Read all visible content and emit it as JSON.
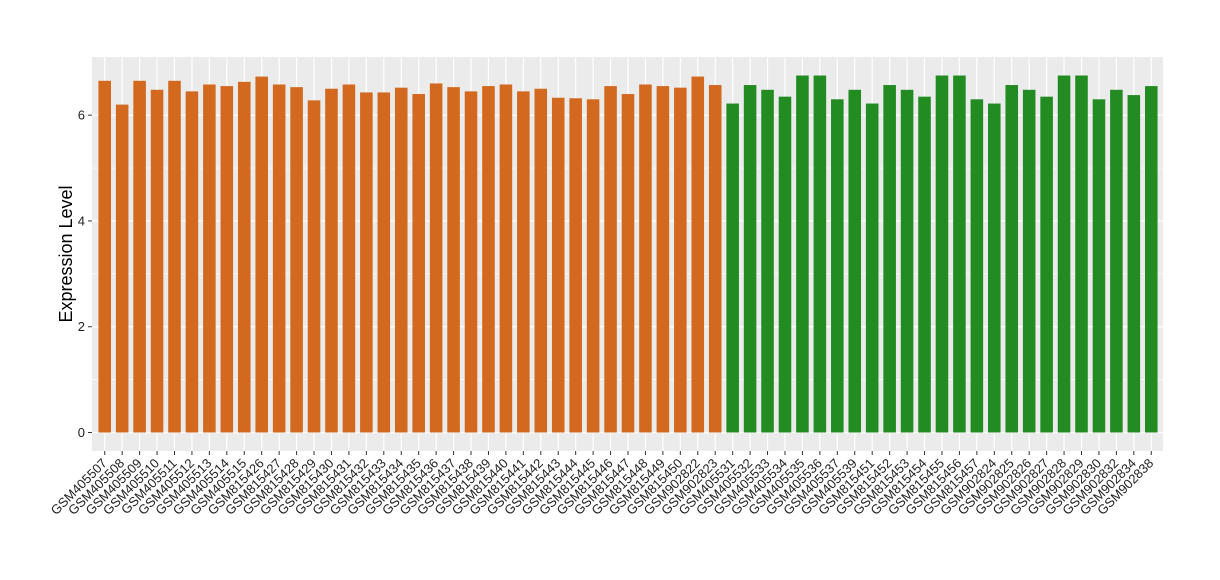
{
  "chart_data": {
    "type": "bar",
    "title": "",
    "xlabel": "",
    "ylabel": "Expression Level",
    "ylim": [
      -0.35,
      7.1
    ],
    "yticks": [
      0,
      2,
      4,
      6
    ],
    "grid": true,
    "legend": "none",
    "colors": {
      "group1": "#D2691E",
      "group2": "#228B22",
      "panel": "#EBEBEB",
      "grid": "#FFFFFF"
    },
    "categories": [
      "GSM405507",
      "GSM405508",
      "GSM405509",
      "GSM405510",
      "GSM405511",
      "GSM405512",
      "GSM405513",
      "GSM405514",
      "GSM405515",
      "GSM815426",
      "GSM815427",
      "GSM815428",
      "GSM815429",
      "GSM815430",
      "GSM815431",
      "GSM815432",
      "GSM815433",
      "GSM815434",
      "GSM815435",
      "GSM815436",
      "GSM815437",
      "GSM815438",
      "GSM815439",
      "GSM815440",
      "GSM815441",
      "GSM815442",
      "GSM815443",
      "GSM815444",
      "GSM815445",
      "GSM815446",
      "GSM815447",
      "GSM815448",
      "GSM815449",
      "GSM815450",
      "GSM902822",
      "GSM902823",
      "GSM405531",
      "GSM405532",
      "GSM405533",
      "GSM405534",
      "GSM405535",
      "GSM405536",
      "GSM405537",
      "GSM405539",
      "GSM815451",
      "GSM815452",
      "GSM815453",
      "GSM815454",
      "GSM815455",
      "GSM815456",
      "GSM815457",
      "GSM902824",
      "GSM902825",
      "GSM902826",
      "GSM902827",
      "GSM902828",
      "GSM902829",
      "GSM902830",
      "GSM902832",
      "GSM902834",
      "GSM902838"
    ],
    "values": [
      6.65,
      6.2,
      6.65,
      6.48,
      6.65,
      6.45,
      6.58,
      6.55,
      6.63,
      6.73,
      6.58,
      6.53,
      6.28,
      6.5,
      6.58,
      6.43,
      6.43,
      6.52,
      6.4,
      6.6,
      6.53,
      6.45,
      6.55,
      6.58,
      6.45,
      6.5,
      6.33,
      6.32,
      6.3,
      6.55,
      6.4,
      6.58,
      6.55,
      6.52,
      6.73,
      6.57,
      6.22,
      6.57,
      6.48,
      6.35,
      6.75,
      6.75,
      6.3,
      6.48,
      6.22,
      6.57,
      6.48,
      6.35,
      6.75,
      6.75,
      6.3,
      6.22,
      6.57,
      6.48,
      6.35,
      6.75,
      6.75,
      6.3,
      6.48,
      6.38,
      6.55
    ],
    "groups": [
      1,
      1,
      1,
      1,
      1,
      1,
      1,
      1,
      1,
      1,
      1,
      1,
      1,
      1,
      1,
      1,
      1,
      1,
      1,
      1,
      1,
      1,
      1,
      1,
      1,
      1,
      1,
      1,
      1,
      1,
      1,
      1,
      1,
      1,
      1,
      1,
      2,
      2,
      2,
      2,
      2,
      2,
      2,
      2,
      2,
      2,
      2,
      2,
      2,
      2,
      2,
      2,
      2,
      2,
      2,
      2,
      2,
      2,
      2,
      2,
      2
    ]
  }
}
